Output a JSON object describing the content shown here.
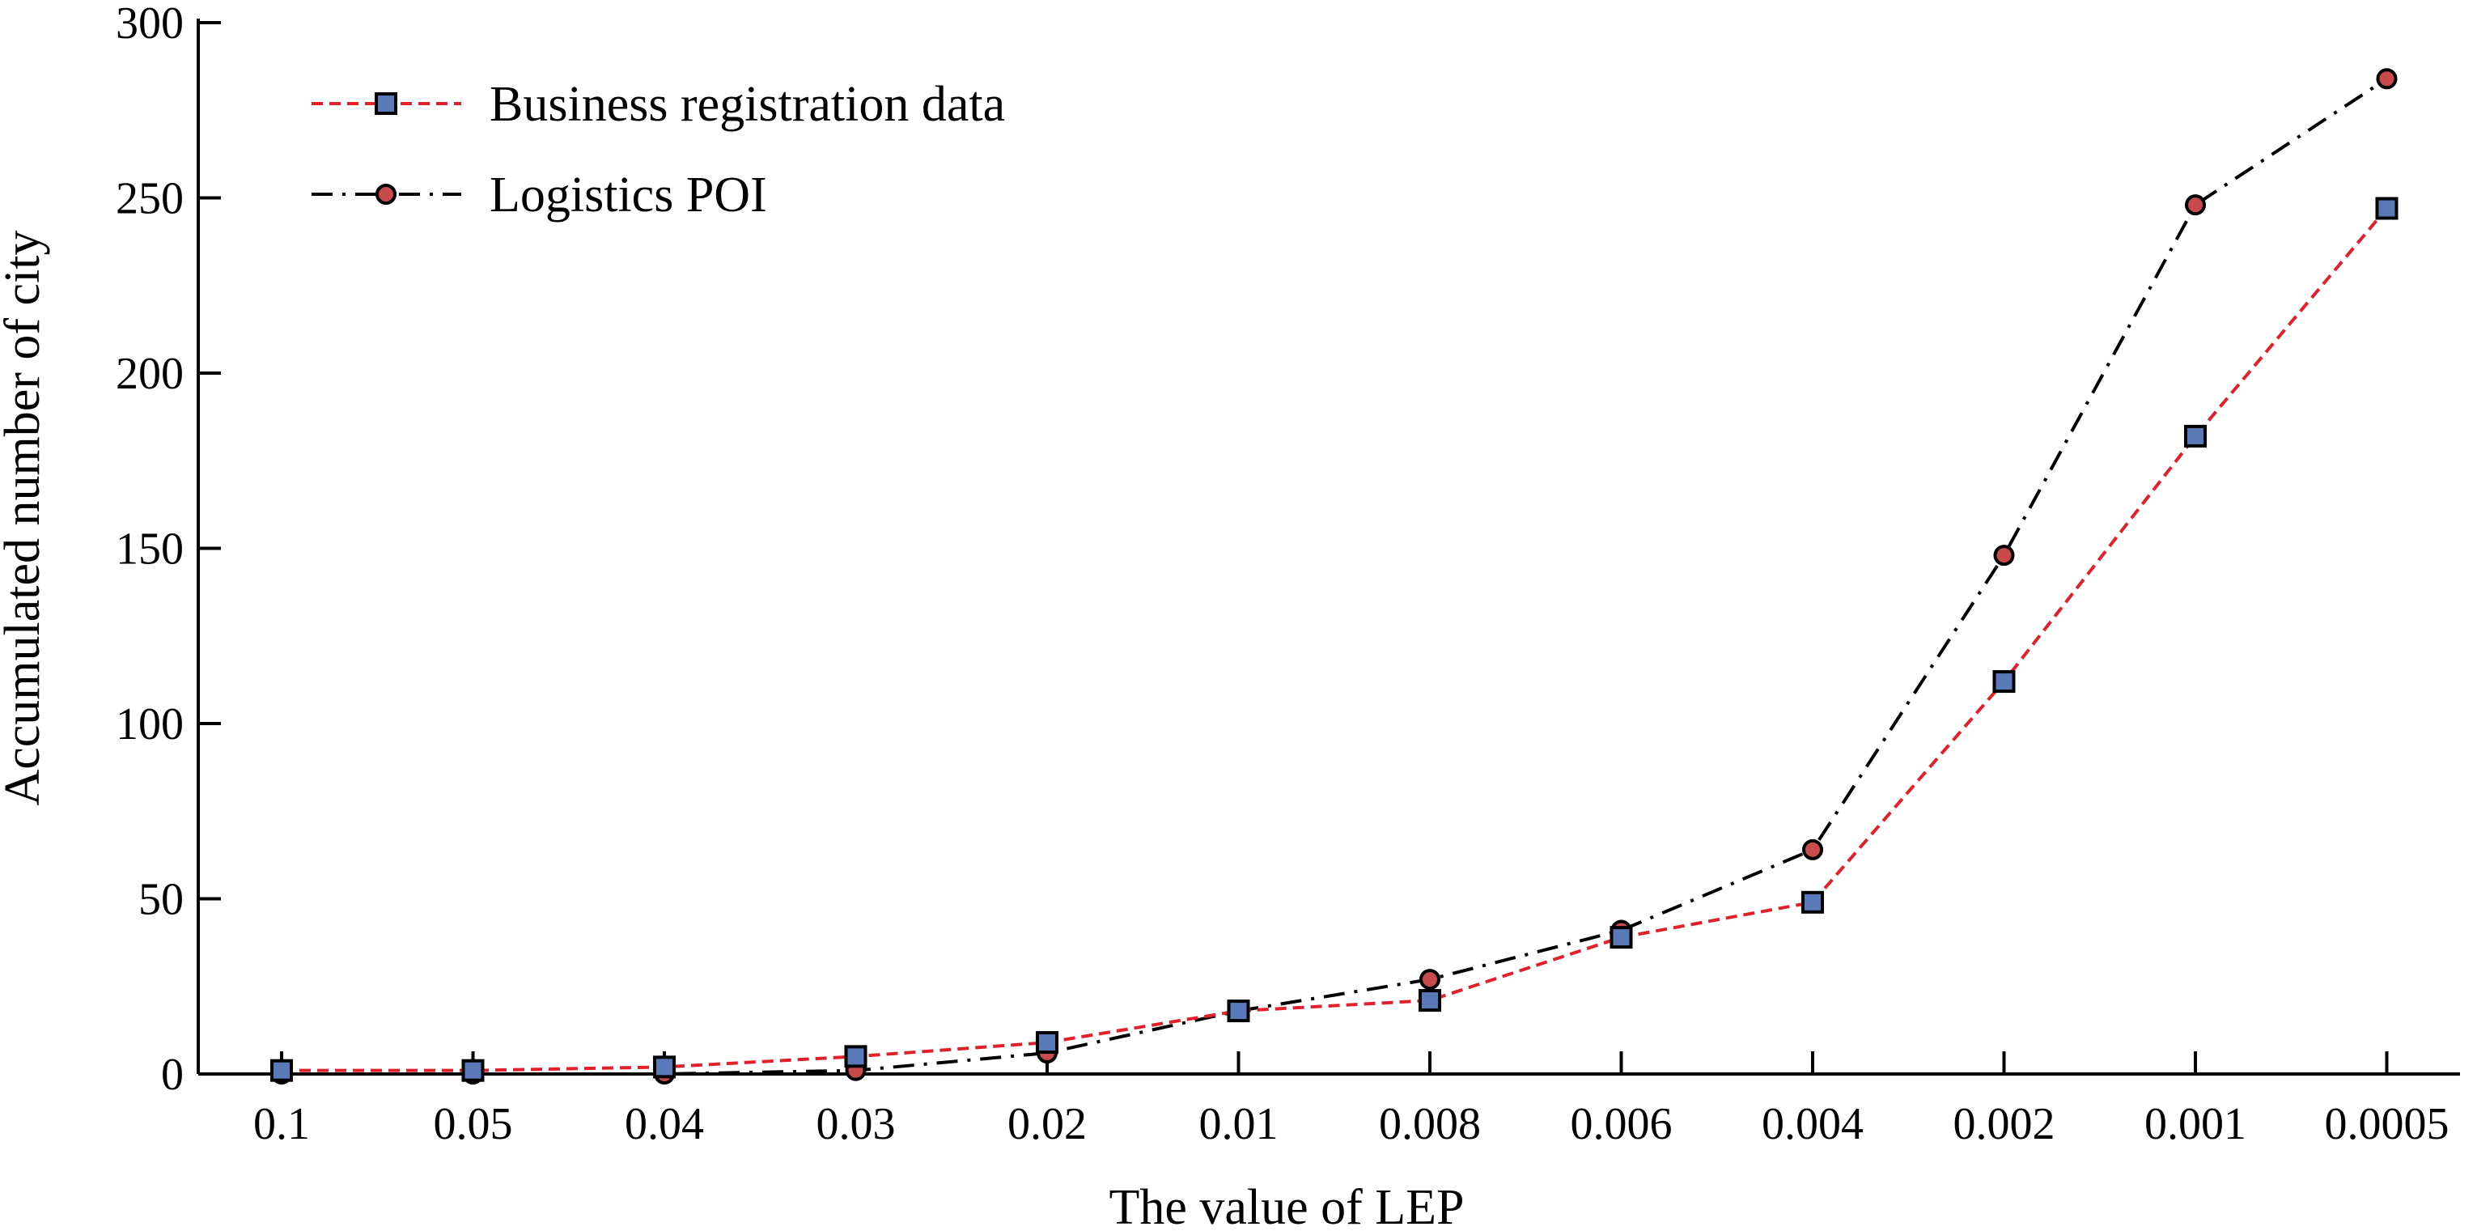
{
  "chart_data": {
    "type": "line",
    "categories": [
      "0.1",
      "0.05",
      "0.04",
      "0.03",
      "0.02",
      "0.01",
      "0.008",
      "0.006",
      "0.004",
      "0.002",
      "0.001",
      "0.0005"
    ],
    "series": [
      {
        "name": "Business registration data",
        "values": [
          1,
          1,
          2,
          5,
          9,
          18,
          21,
          39,
          49,
          112,
          182,
          247
        ],
        "color": "#e0202a",
        "marker": "square",
        "marker_fill": "#5a79b8",
        "line_style": "dashed"
      },
      {
        "name": "Logistics POI",
        "values": [
          0,
          0,
          0,
          1,
          6,
          18,
          27,
          41,
          64,
          148,
          248,
          284
        ],
        "color": "#000000",
        "marker": "circle",
        "marker_fill": "#c84a4a",
        "line_style": "dash-dot"
      }
    ],
    "title": "",
    "xlabel": "The value of LEP",
    "ylabel": "Accumulated number of city",
    "ylim": [
      0,
      300
    ],
    "yticks": [
      "0",
      "50",
      "100",
      "150",
      "200",
      "250",
      "300"
    ],
    "grid": false,
    "legend_position": "top-left"
  }
}
